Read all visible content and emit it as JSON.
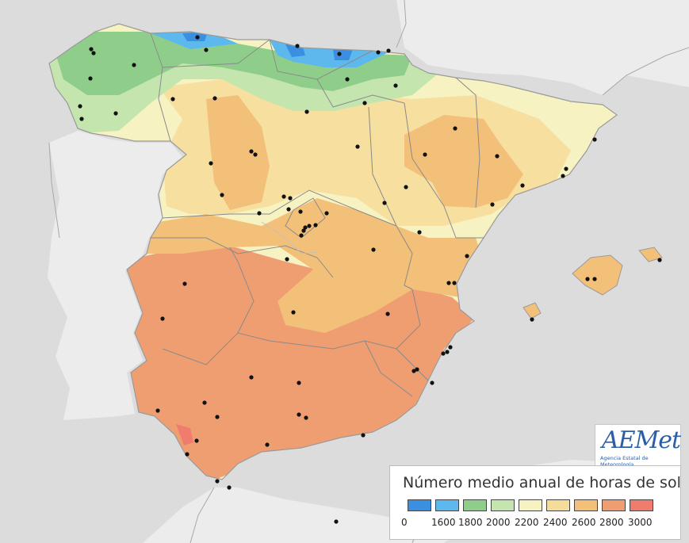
{
  "map": {
    "title": "Número medio anual de horas de sol",
    "colors": {
      "sea": "#dcdcdc",
      "foreign_land": "#ececec",
      "border": "#8a8a8a",
      "city": "#111111"
    },
    "legend": {
      "classes": [
        {
          "color": "#3a8fe0"
        },
        {
          "color": "#5db8ee"
        },
        {
          "color": "#8fce8a"
        },
        {
          "color": "#c4e6ae"
        },
        {
          "color": "#f7f2c2"
        },
        {
          "color": "#f6dc99"
        },
        {
          "color": "#f3c07a"
        },
        {
          "color": "#ef9e72"
        },
        {
          "color": "#f07c6d"
        }
      ],
      "tick_labels": [
        "0",
        "1600",
        "1800",
        "2000",
        "2200",
        "2400",
        "2600",
        "2800",
        "3000"
      ]
    }
  },
  "logo": {
    "name": "AEMet",
    "subtitle": "Agencia Estatal de Meteorología"
  }
}
